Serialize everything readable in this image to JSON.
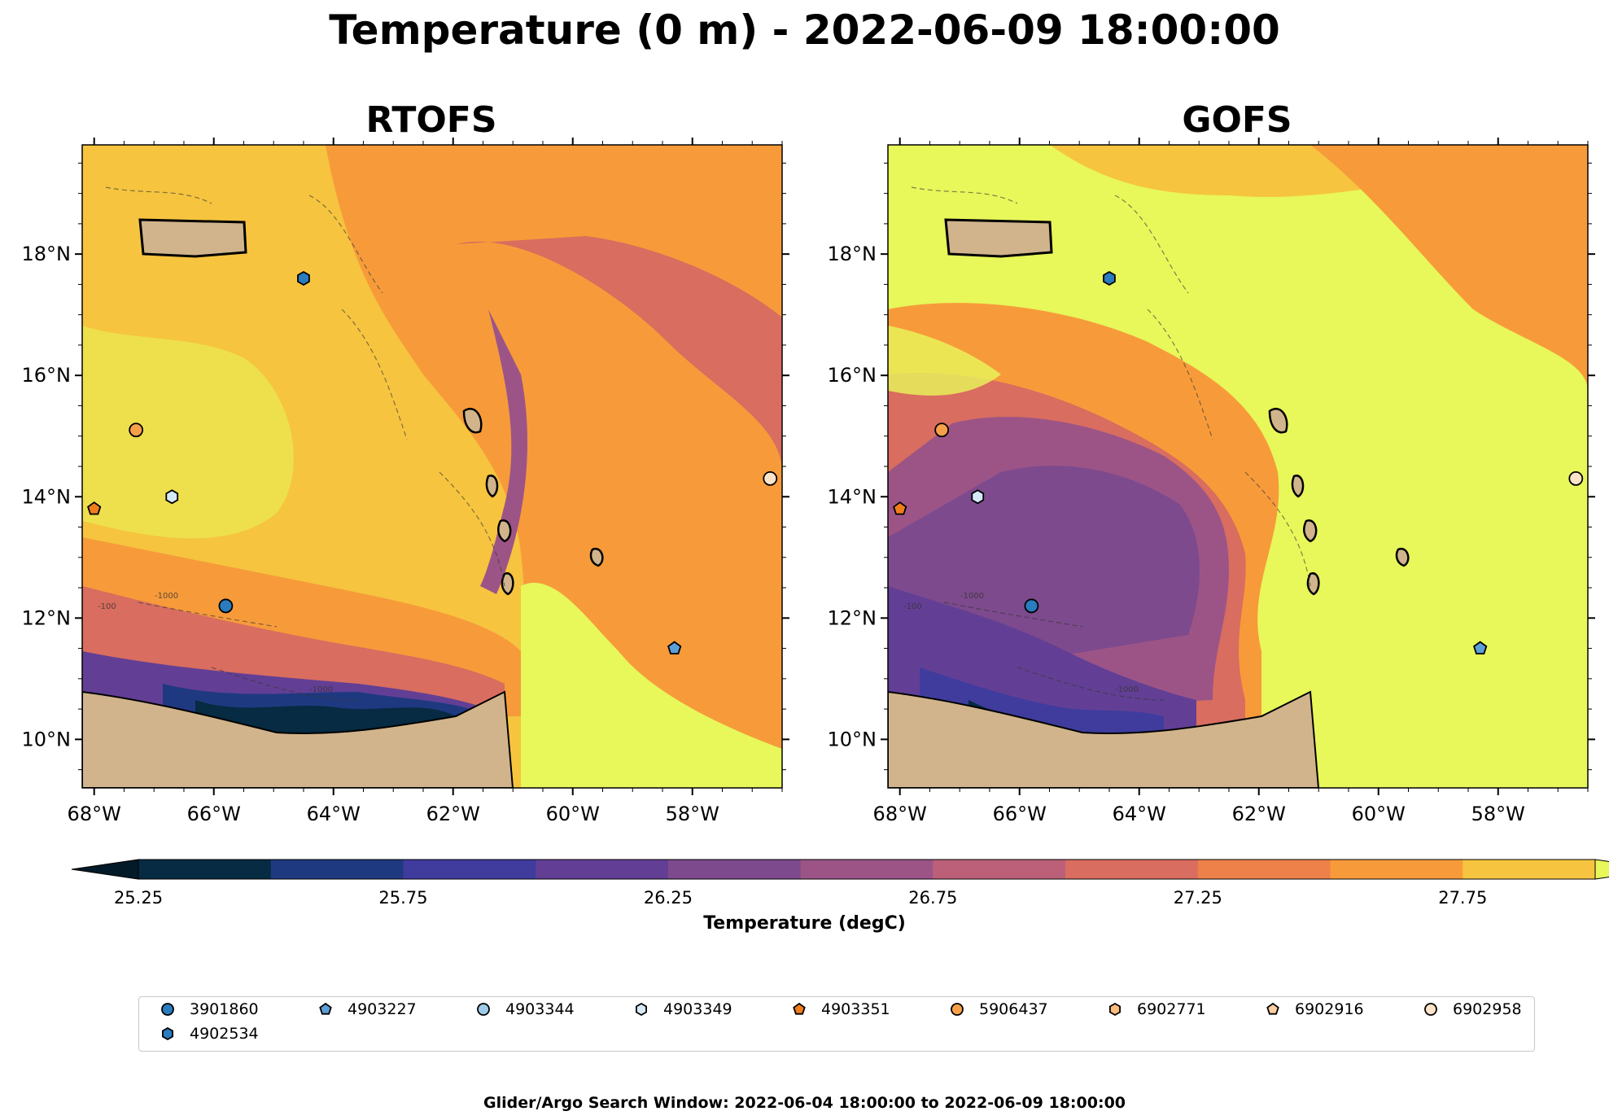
{
  "figure": {
    "title": "Temperature (0 m) - 2022-06-09 18:00:00",
    "footer": "Glider/Argo Search Window: 2022-06-04 18:00:00 to 2022-06-09 18:00:00"
  },
  "panels": [
    {
      "title": "RTOFS"
    },
    {
      "title": "GOFS"
    }
  ],
  "map": {
    "lon_range": [
      -68.2,
      -56.5
    ],
    "lat_range": [
      9.2,
      19.8
    ],
    "x_ticks": [
      "68°W",
      "66°W",
      "64°W",
      "62°W",
      "60°W",
      "58°W"
    ],
    "x_tick_values": [
      -68,
      -66,
      -64,
      -62,
      -60,
      -58
    ],
    "y_ticks": [
      "10°N",
      "12°N",
      "14°N",
      "16°N",
      "18°N"
    ],
    "y_tick_values": [
      10,
      12,
      14,
      16,
      18
    ],
    "land_color": "#d1b48c",
    "contour_labels": [
      "-1000",
      "-100"
    ]
  },
  "colorbar": {
    "label": "Temperature (degC)",
    "tick_labels": [
      "25.25",
      "25.75",
      "26.25",
      "26.75",
      "27.25",
      "27.75"
    ],
    "levels": [
      25.25,
      25.5,
      25.75,
      26.0,
      26.25,
      26.5,
      26.75,
      27.0,
      27.25,
      27.5,
      27.75,
      28.0
    ],
    "colors": [
      "#062b42",
      "#1f3980",
      "#3f3c9e",
      "#623f95",
      "#7d4a8d",
      "#9c5487",
      "#bc6079",
      "#d96d5f",
      "#ee8149",
      "#f79b3a",
      "#f6c43f"
    ],
    "extend_min_color": "#031a28",
    "extend_max_color": "#e8f75a"
  },
  "legend": [
    {
      "id": "3901860",
      "marker": "circle",
      "color": "#2a7bbf"
    },
    {
      "id": "4903227",
      "marker": "pentagon",
      "color": "#5b9fd8"
    },
    {
      "id": "4903344",
      "marker": "circle",
      "color": "#9ecbea"
    },
    {
      "id": "4903349",
      "marker": "hexagon",
      "color": "#d6e9f8"
    },
    {
      "id": "4903351",
      "marker": "pentagon",
      "color": "#f07d1c"
    },
    {
      "id": "5906437",
      "marker": "circle",
      "color": "#f7a04a"
    },
    {
      "id": "6902771",
      "marker": "hexagon",
      "color": "#fbbd7e"
    },
    {
      "id": "6902916",
      "marker": "pentagon",
      "color": "#fccfa0"
    },
    {
      "id": "6902958",
      "marker": "circle",
      "color": "#fde4c8"
    },
    {
      "id": "4902534",
      "marker": "hexagon",
      "color": "#2a7bbf"
    }
  ],
  "platforms": [
    {
      "id": "4902534",
      "lon": -64.5,
      "lat": 17.6
    },
    {
      "id": "5906437",
      "lon": -67.3,
      "lat": 15.1
    },
    {
      "id": "6902958",
      "lon": -56.7,
      "lat": 14.3
    },
    {
      "id": "4903349",
      "lon": -66.7,
      "lat": 14.0
    },
    {
      "id": "4903351",
      "lon": -68.0,
      "lat": 13.8
    },
    {
      "id": "3901860",
      "lon": -65.8,
      "lat": 12.2
    },
    {
      "id": "4903227",
      "lon": -58.3,
      "lat": 11.5
    }
  ]
}
